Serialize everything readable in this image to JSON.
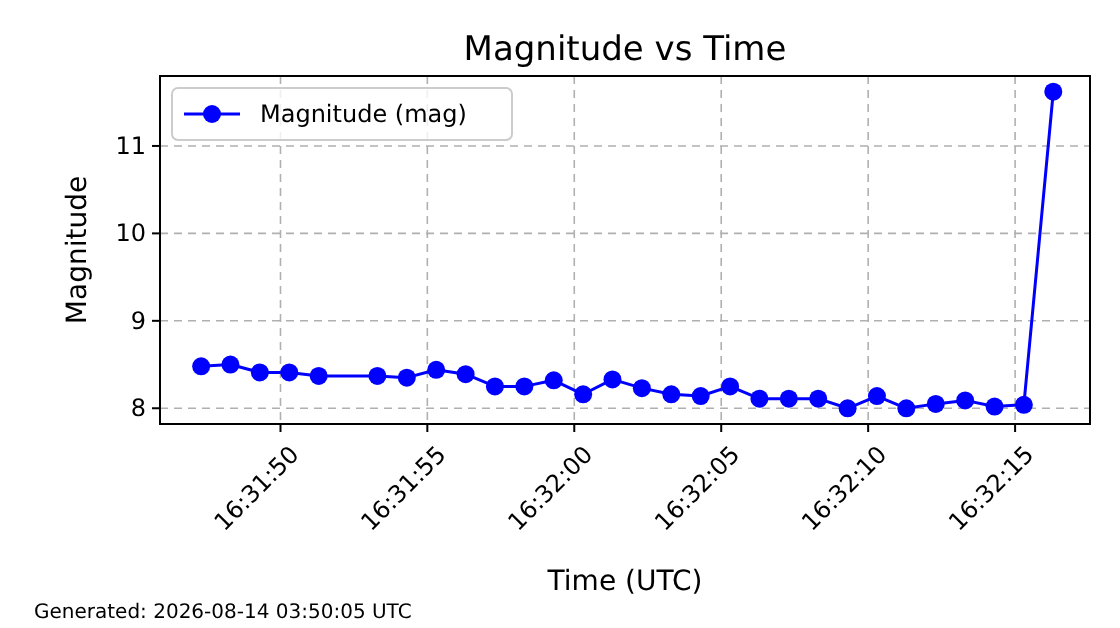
{
  "chart_data": {
    "type": "line",
    "title": "Magnitude vs Time",
    "xlabel": "Time (UTC)",
    "ylabel": "Magnitude",
    "annotations": [
      "Generated: 2026-08-14 03:50:05 UTC"
    ],
    "x": [
      16.529806,
      16.530083,
      16.530361,
      16.530639,
      16.530917,
      16.531472,
      16.53175,
      16.532028,
      16.532306,
      16.532583,
      16.532861,
      16.533139,
      16.533417,
      16.533694,
      16.533972,
      16.53425,
      16.534528,
      16.534806,
      16.535083,
      16.535361,
      16.535639,
      16.535917,
      16.536194,
      16.536472,
      16.53675,
      16.537028,
      16.537306,
      16.537583,
      16.537861
    ],
    "series": [
      {
        "name": "Magnitude (mag)",
        "color": "#0000ff",
        "values": [
          8.48,
          8.5,
          8.41,
          8.41,
          8.37,
          8.37,
          8.35,
          8.44,
          8.39,
          8.25,
          8.25,
          8.32,
          8.16,
          8.33,
          8.23,
          8.16,
          8.14,
          8.25,
          8.11,
          8.11,
          8.11,
          8.0,
          8.14,
          8.0,
          8.05,
          8.09,
          8.02,
          8.04,
          11.62
        ]
      }
    ],
    "xlim": [
      16.529417,
      16.538208
    ],
    "ylim": [
      7.82,
      11.8
    ],
    "xticks": [
      {
        "value": 16.530556,
        "label": "16:31:50"
      },
      {
        "value": 16.531944,
        "label": "16:31:55"
      },
      {
        "value": 16.533333,
        "label": "16:32:00"
      },
      {
        "value": 16.534722,
        "label": "16:32:05"
      },
      {
        "value": 16.536111,
        "label": "16:32:10"
      },
      {
        "value": 16.5375,
        "label": "16:32:15"
      }
    ],
    "yticks": [
      8,
      9,
      10,
      11
    ],
    "grid": true,
    "legend": "top left",
    "marker": "circle",
    "line_style": "solid"
  }
}
